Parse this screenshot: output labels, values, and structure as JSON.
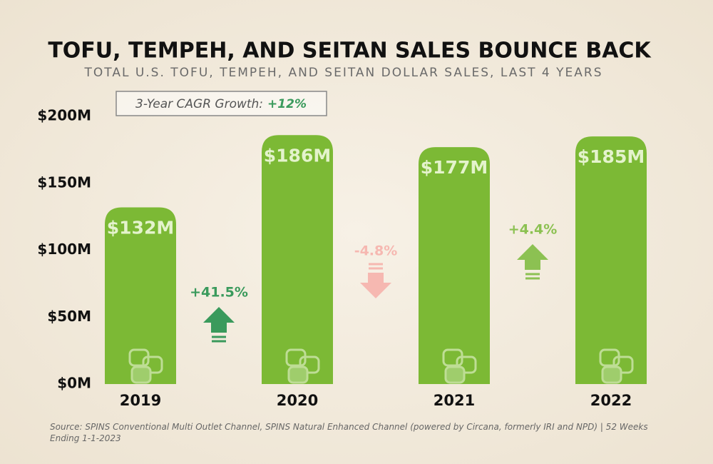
{
  "chart_data": {
    "type": "bar",
    "title": "TOFU, TEMPEH, AND SEITAN SALES BOUNCE BACK",
    "subtitle": "TOTAL U.S. TOFU, TEMPEH, AND SEITAN DOLLAR SALES, LAST 4 YEARS",
    "cagr_label": "3-Year CAGR Growth:",
    "cagr_value": "+12%",
    "categories": [
      "2019",
      "2020",
      "2021",
      "2022"
    ],
    "values": [
      132000000,
      186000000,
      177000000,
      185000000
    ],
    "value_labels": [
      "$132M",
      "$186M",
      "$177M",
      "$185M"
    ],
    "color": "#7cb935",
    "change_labels": [
      "+41.5%",
      "-4.8%",
      "+4.4%"
    ],
    "change_colors": [
      "#3a9a5c",
      "#f6b8b1",
      "#8cc152"
    ],
    "ylim": [
      0,
      200000000
    ],
    "yticks": [
      {
        "value": 0,
        "label": "$0M"
      },
      {
        "value": 50000000,
        "label": "$50M"
      },
      {
        "value": 100000000,
        "label": "$100M"
      },
      {
        "value": 150000000,
        "label": "$150M"
      },
      {
        "value": 200000000,
        "label": "$200M"
      }
    ],
    "grid": false,
    "source": "Source: SPINS Conventional Multi Outlet Channel, SPINS Natural Enhanced Channel (powered by Circana, formerly IRI and NPD) | 52 Weeks Ending 1-1-2023"
  }
}
